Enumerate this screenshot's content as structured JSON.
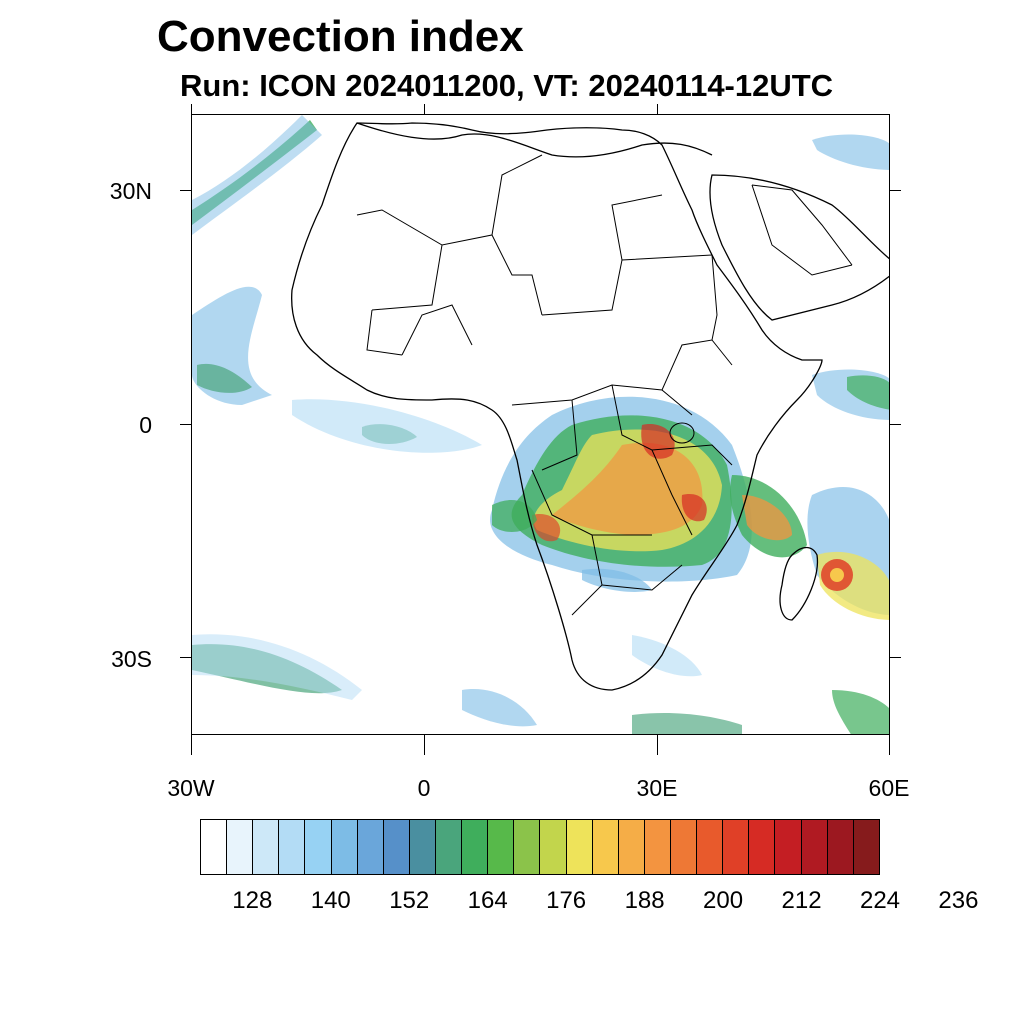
{
  "title": "Convection index",
  "subtitle": "Run: ICON 2024011200,  VT: 20240114-12UTC",
  "map": {
    "projection": "cylindrical-equidistant",
    "lon_range": [
      -30,
      60
    ],
    "lat_range": [
      -40,
      40
    ],
    "lat_labels": [
      {
        "lat": 30,
        "text": "30N"
      },
      {
        "lat": 0,
        "text": "0"
      },
      {
        "lat": -30,
        "text": "30S"
      }
    ],
    "lon_labels": [
      {
        "lon": -30,
        "text": "30W"
      },
      {
        "lon": 0,
        "text": "0"
      },
      {
        "lon": 30,
        "text": "30E"
      },
      {
        "lon": 60,
        "text": "60E"
      }
    ]
  },
  "colorbar": {
    "colors": [
      "#ffffff",
      "#e8f4fc",
      "#cde8f8",
      "#b3dcf5",
      "#97d2f3",
      "#7dbce6",
      "#6aa6da",
      "#5690c9",
      "#4a8fa0",
      "#4aa57c",
      "#3fae5c",
      "#57b94a",
      "#8bc34a",
      "#c2d54c",
      "#eee35a",
      "#f7c84c",
      "#f5ad47",
      "#f39440",
      "#ee7835",
      "#e85a2c",
      "#e04027",
      "#d62b24",
      "#c41e23",
      "#b01a22",
      "#9c1820",
      "#861b1c"
    ],
    "labels": [
      "128",
      "140",
      "152",
      "164",
      "176",
      "188",
      "200",
      "212",
      "224",
      "236"
    ]
  }
}
